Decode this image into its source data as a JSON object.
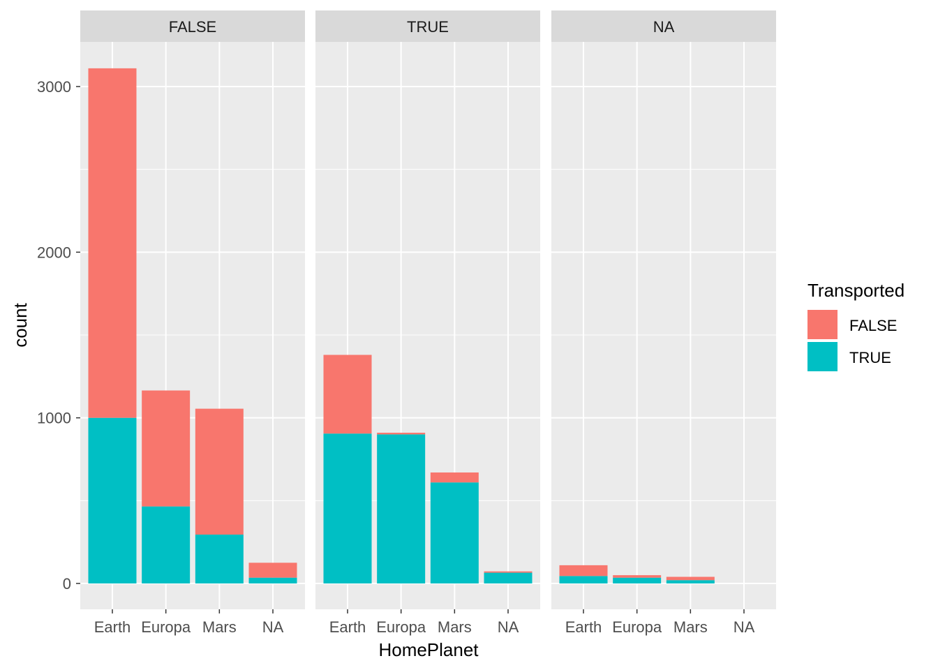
{
  "chart_data": {
    "type": "bar",
    "stacked": true,
    "facet_variable_values": [
      "FALSE",
      "TRUE",
      "NA"
    ],
    "categories": [
      "Earth",
      "Europa",
      "Mars",
      "NA"
    ],
    "xlabel": "HomePlanet",
    "ylabel": "count",
    "ylim": [
      -150,
      3300
    ],
    "y_ticks": [
      0,
      1000,
      2000,
      3000
    ],
    "legend": {
      "title": "Transported",
      "position": "right",
      "entries": [
        {
          "label": "FALSE",
          "color": "#F8766D"
        },
        {
          "label": "TRUE",
          "color": "#00BFC4"
        }
      ]
    },
    "panels": [
      {
        "strip": "FALSE",
        "series": [
          {
            "name": "TRUE",
            "values": [
              1000,
              465,
              295,
              35
            ]
          },
          {
            "name": "FALSE",
            "values": [
              2110,
              700,
              760,
              90
            ]
          }
        ]
      },
      {
        "strip": "TRUE",
        "series": [
          {
            "name": "TRUE",
            "values": [
              905,
              900,
              610,
              65
            ]
          },
          {
            "name": "FALSE",
            "values": [
              475,
              10,
              60,
              8
            ]
          }
        ]
      },
      {
        "strip": "NA",
        "series": [
          {
            "name": "TRUE",
            "values": [
              45,
              35,
              20,
              0
            ]
          },
          {
            "name": "FALSE",
            "values": [
              65,
              15,
              20,
              0
            ]
          }
        ]
      }
    ],
    "grid": true
  }
}
